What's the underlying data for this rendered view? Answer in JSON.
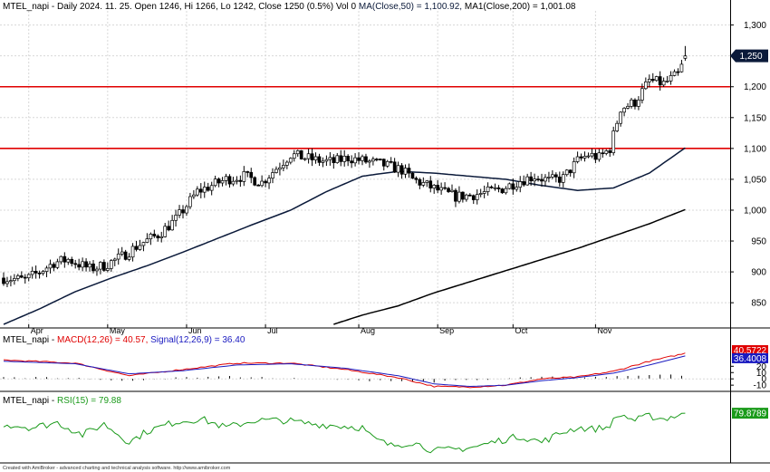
{
  "header": {
    "main": "MTEL_napi - Daily 2024. 11. 25. Open 1246, Hi 1266, Lo 1242, Close 1250 (0.5%) Vol 0",
    "ma1": "MA(Close,50) = 1,100.92,",
    "ma2": "MA1(Close,200) = 1,001.08",
    "macd_name": "MTEL_napi -",
    "macd_value": "MACD(12,26) = 40.57,",
    "signal_value": "Signal(12,26,9) = 36.40",
    "rsi_name": "MTEL_napi -",
    "rsi_value": "RSI(15) = 79.88"
  },
  "footer": "Created with AmiBroker - advanced charting and technical analysis software. http://www.amibroker.com",
  "colors": {
    "up": "#ffffff",
    "down": "#000000",
    "ma": "#0b1a3a",
    "hline": "#e00000",
    "macd": "#e00000",
    "signal": "#1a1ac0",
    "rsi": "#1a9a1a",
    "grid": "#d8d8d8"
  },
  "chart_data": [
    {
      "type": "candlestick",
      "title": "MTEL_napi - Daily",
      "ylim": [
        815,
        1320
      ],
      "y_ticks": [
        "1,300",
        "1,250",
        "1,200",
        "1,150",
        "1,100",
        "1,050",
        "1,000",
        "950",
        "900",
        "850"
      ],
      "y_tick_values": [
        1300,
        1250,
        1200,
        1150,
        1100,
        1050,
        1000,
        950,
        900,
        850
      ],
      "x_labels": [
        "Apr",
        "May",
        "Jun",
        "Jul",
        "Aug",
        "Sep",
        "Oct",
        "Nov"
      ],
      "x_label_index": [
        7,
        29,
        51,
        73,
        99,
        121,
        142,
        165
      ],
      "last_price_label": "1,250",
      "horizontal_lines": [
        1200,
        1100
      ],
      "series": [
        {
          "name": "MA(Close,50)",
          "values": [
            null,
            null,
            null,
            null,
            null,
            null,
            null,
            null,
            null,
            null,
            null,
            null,
            null,
            null,
            null,
            null,
            null,
            null,
            null,
            null,
            null,
            null,
            null,
            null,
            null,
            null,
            null,
            null,
            null,
            null,
            null,
            null,
            null,
            null,
            null,
            null,
            null,
            null,
            null,
            null,
            null,
            null,
            null,
            null,
            null,
            null,
            null,
            null,
            null,
            null,
            null,
            null,
            null,
            null,
            null,
            null,
            null,
            null,
            null,
            null,
            null,
            null,
            null,
            null,
            null,
            null,
            null,
            null,
            null,
            null,
            null,
            null,
            null,
            null,
            null,
            null,
            null,
            null,
            null,
            null,
            null,
            null,
            null,
            null,
            null,
            null,
            null,
            null,
            null,
            null,
            null,
            null,
            null,
            null,
            null,
            null,
            null,
            null,
            null,
            null,
            null,
            null,
            null,
            null,
            null,
            null,
            null,
            null,
            null,
            null,
            null,
            null,
            null,
            null,
            null,
            null,
            null,
            null,
            null,
            null,
            null,
            null,
            null,
            null,
            null,
            null,
            null,
            null,
            null,
            null,
            null,
            null,
            null,
            null,
            null,
            null,
            null,
            null,
            null,
            null,
            null,
            null,
            null,
            null,
            null,
            null,
            null,
            null,
            null,
            null,
            null,
            null,
            null,
            null,
            null,
            null,
            null,
            null,
            null,
            null,
            null,
            null,
            null,
            null,
            null,
            null,
            null,
            null,
            null,
            null,
            null,
            null,
            null,
            null,
            null,
            null,
            null,
            null,
            null,
            null,
            null,
            null,
            null,
            null,
            null
          ]
        },
        {
          "name": "MA1(Close,200)",
          "values": []
        }
      ]
    },
    {
      "type": "line",
      "title": "MACD(12,26) / Signal(12,26,9)",
      "ylim": [
        -17,
        55
      ],
      "y_ticks": [
        "20",
        "10",
        "0",
        "-10"
      ],
      "y_tick_values": [
        20,
        10,
        0,
        -10
      ],
      "last_values": {
        "macd": "40.5722",
        "signal": "36.4008"
      }
    },
    {
      "type": "line",
      "title": "RSI(15)",
      "ylim": [
        15,
        90
      ],
      "last_value": "79.8789"
    }
  ]
}
